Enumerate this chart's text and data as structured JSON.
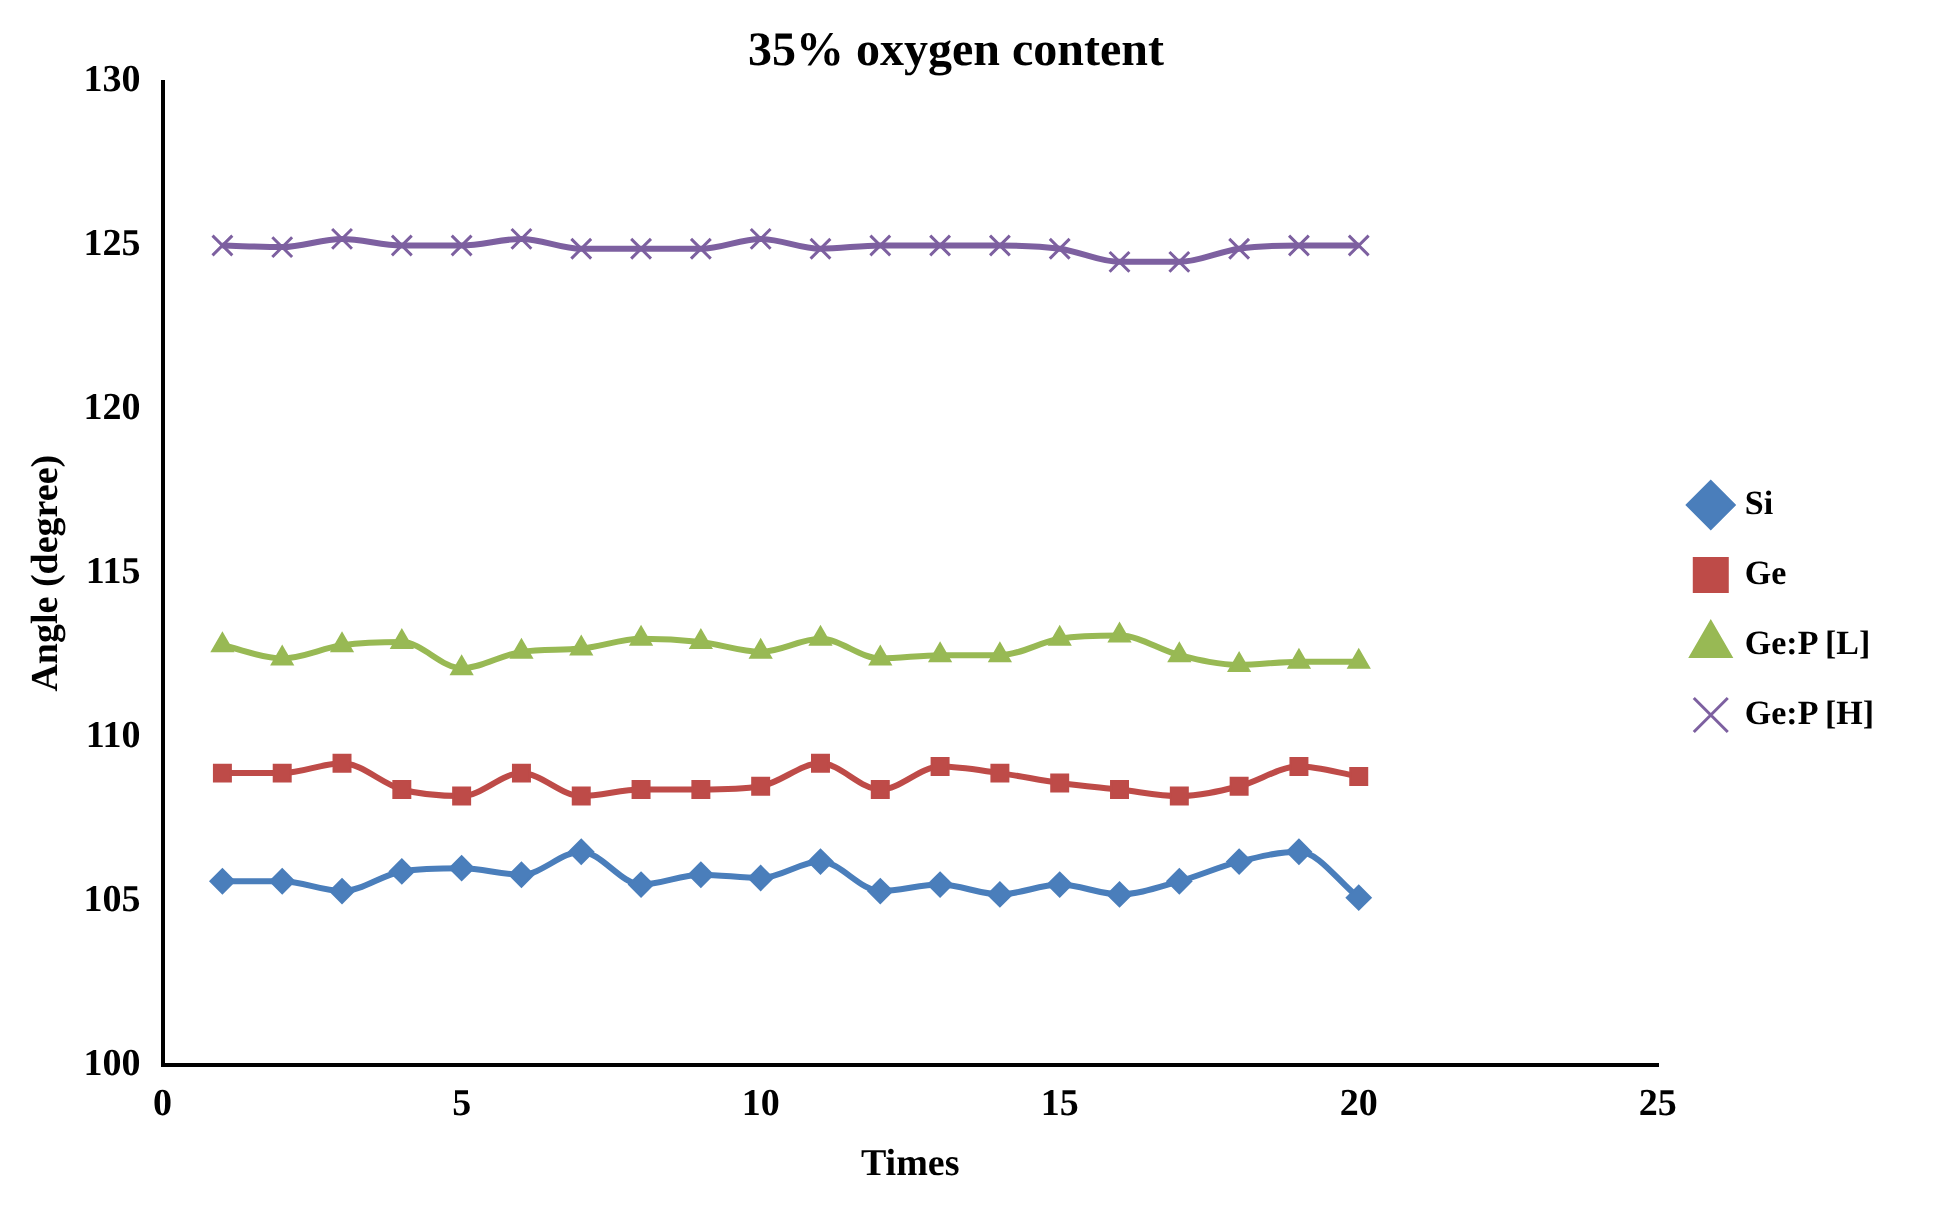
{
  "chart_data": {
    "type": "line",
    "title": "35% oxygen content",
    "xlabel": "Times",
    "ylabel": "Angle (degree)",
    "x": [
      1,
      2,
      3,
      4,
      5,
      6,
      7,
      8,
      9,
      10,
      11,
      12,
      13,
      14,
      15,
      16,
      17,
      18,
      19,
      20
    ],
    "xlim": [
      0,
      25
    ],
    "xticks": [
      0,
      5,
      10,
      15,
      20,
      25
    ],
    "ylim": [
      100,
      130
    ],
    "yticks": [
      100,
      105,
      110,
      115,
      120,
      125,
      130
    ],
    "grid": false,
    "legend": "right",
    "line_style": "solid",
    "series": [
      {
        "name": "Si",
        "color": "#4a7ebb",
        "marker": "diamond",
        "values": [
          105.6,
          105.6,
          105.3,
          105.9,
          106.0,
          105.8,
          106.5,
          105.5,
          105.8,
          105.7,
          106.2,
          105.3,
          105.5,
          105.2,
          105.5,
          105.2,
          105.6,
          106.2,
          106.5,
          105.1
        ]
      },
      {
        "name": "Ge",
        "color": "#be4b48",
        "marker": "square",
        "values": [
          108.9,
          108.9,
          109.2,
          108.4,
          108.2,
          108.9,
          108.2,
          108.4,
          108.4,
          108.5,
          109.2,
          108.4,
          109.1,
          108.9,
          108.6,
          108.4,
          108.2,
          108.5,
          109.1,
          108.8
        ]
      },
      {
        "name": "Ge:P [L]",
        "color": "#98b954",
        "marker": "triangle",
        "values": [
          112.8,
          112.4,
          112.8,
          112.9,
          112.1,
          112.6,
          112.7,
          113.0,
          112.9,
          112.6,
          113.0,
          112.4,
          112.5,
          112.5,
          113.0,
          113.1,
          112.5,
          112.2,
          112.3,
          112.3
        ]
      },
      {
        "name": "Ge:P [H]",
        "color": "#7d60a0",
        "marker": "cross",
        "values": [
          125.0,
          124.95,
          125.2,
          125.0,
          125.0,
          125.2,
          124.9,
          124.9,
          124.9,
          125.2,
          124.9,
          125.0,
          125.0,
          125.0,
          124.9,
          124.5,
          124.5,
          124.9,
          125.0,
          125.0
        ]
      }
    ]
  }
}
